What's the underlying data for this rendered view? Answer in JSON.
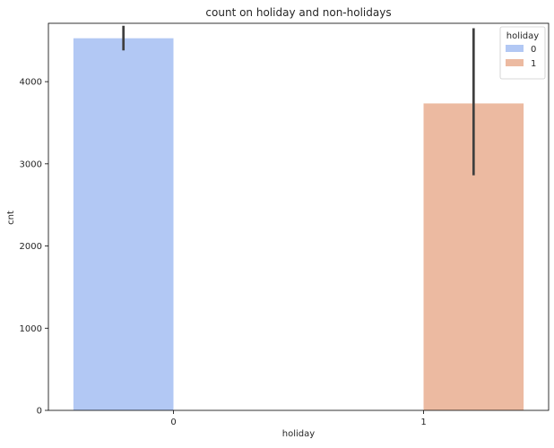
{
  "chart_data": {
    "type": "bar",
    "title": "count on holiday and non-holidays",
    "xlabel": "holiday",
    "ylabel": "cnt",
    "categories": [
      "0",
      "1"
    ],
    "ylim": [
      0,
      4710
    ],
    "yticks": [
      0,
      1000,
      2000,
      3000,
      4000
    ],
    "grid": false,
    "series": [
      {
        "name": "0",
        "color": "#b2c8f4",
        "values": [
          4528,
          null
        ],
        "ci": [
          [
            4380,
            4680
          ],
          null
        ]
      },
      {
        "name": "1",
        "color": "#ecbaa1",
        "values": [
          null,
          3735
        ],
        "ci": [
          null,
          [
            2860,
            4650
          ]
        ]
      }
    ],
    "errorbar_color": "#3f3f3f",
    "legend": {
      "title": "holiday",
      "placement": "top-right"
    }
  }
}
